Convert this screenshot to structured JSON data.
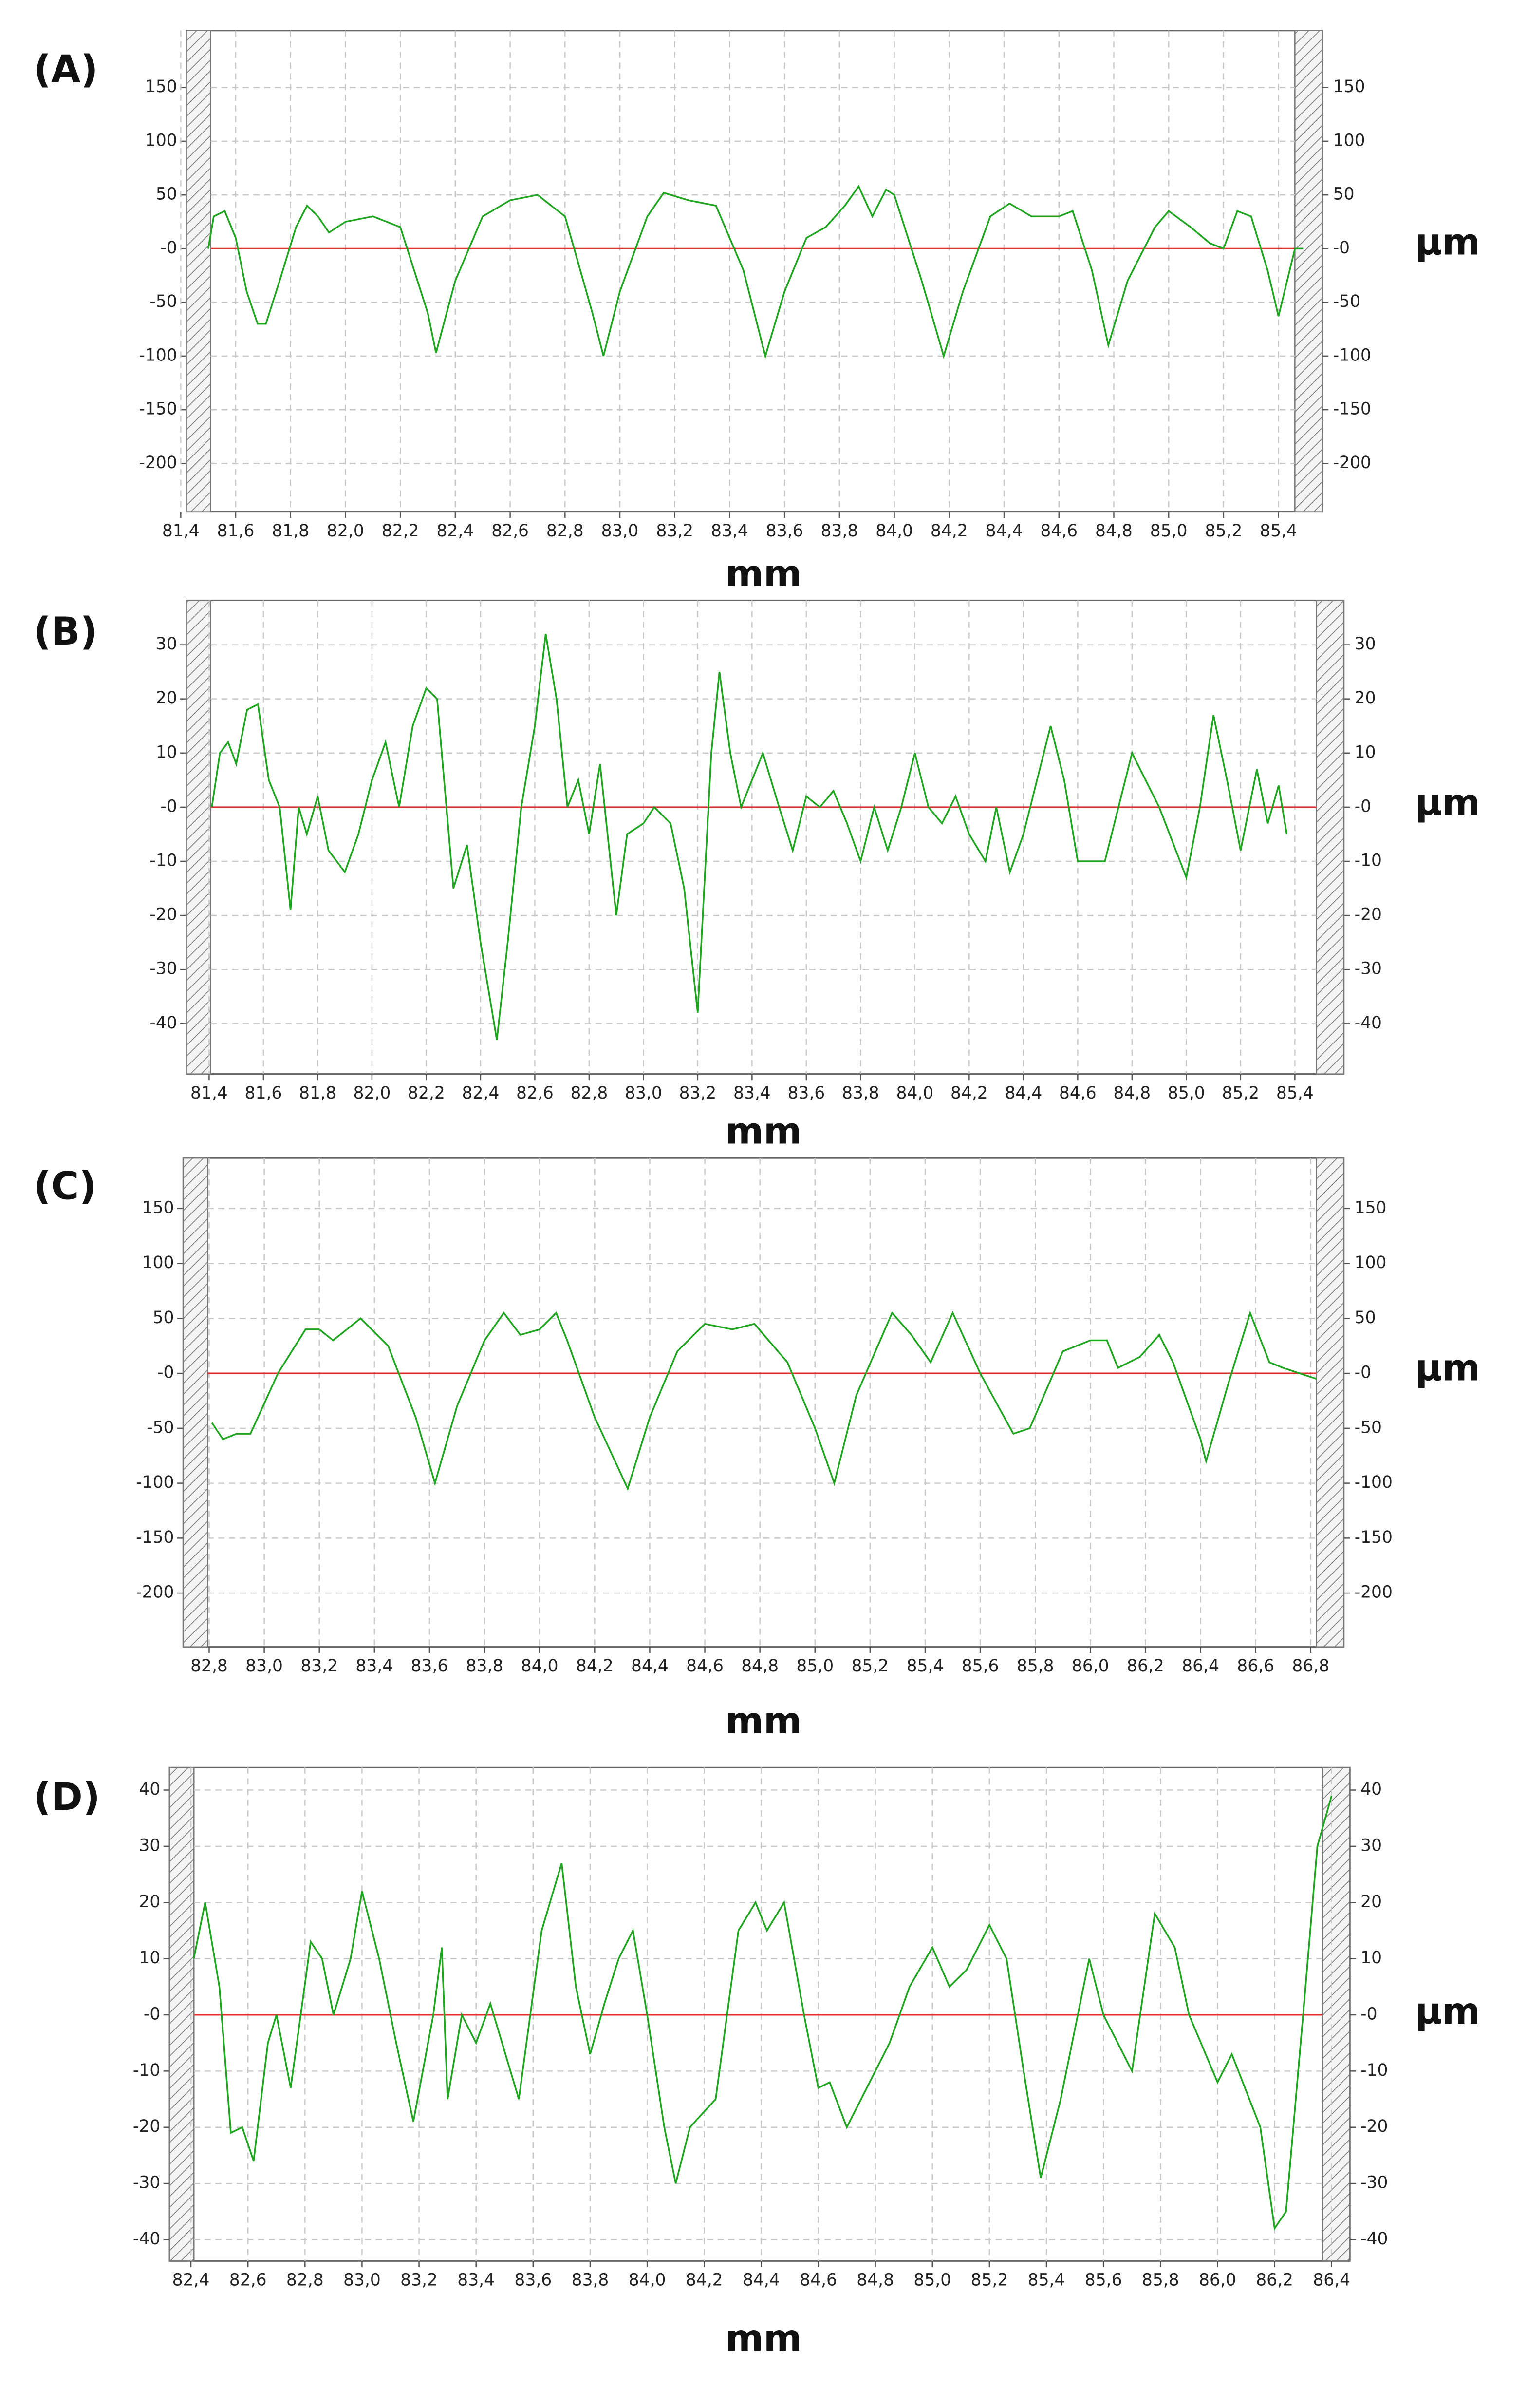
{
  "chart_data": [
    {
      "type": "line",
      "panel_label": "(A)",
      "x_label": "mm",
      "y_label": "µm",
      "color": "#1fa51f",
      "zero_color": "#e03030",
      "grid": true,
      "xlim": [
        81.42,
        85.56
      ],
      "ylim": [
        -245,
        203
      ],
      "xticks": [
        {
          "value": 81.4,
          "label": "81,4"
        },
        {
          "value": 81.6,
          "label": "81,6"
        },
        {
          "value": 81.8,
          "label": "81,8"
        },
        {
          "value": 82.0,
          "label": "82,0"
        },
        {
          "value": 82.2,
          "label": "82,2"
        },
        {
          "value": 82.4,
          "label": "82,4"
        },
        {
          "value": 82.6,
          "label": "82,6"
        },
        {
          "value": 82.8,
          "label": "82,8"
        },
        {
          "value": 83.0,
          "label": "83,0"
        },
        {
          "value": 83.2,
          "label": "83,2"
        },
        {
          "value": 83.4,
          "label": "83,4"
        },
        {
          "value": 83.6,
          "label": "83,6"
        },
        {
          "value": 83.8,
          "label": "83,8"
        },
        {
          "value": 84.0,
          "label": "84,0"
        },
        {
          "value": 84.2,
          "label": "84,2"
        },
        {
          "value": 84.4,
          "label": "84,4"
        },
        {
          "value": 84.6,
          "label": "84,6"
        },
        {
          "value": 84.8,
          "label": "84,8"
        },
        {
          "value": 85.0,
          "label": "85,0"
        },
        {
          "value": 85.2,
          "label": "85,2"
        },
        {
          "value": 85.4,
          "label": "85,4"
        }
      ],
      "yticks": [
        150,
        100,
        50,
        {
          "value": 0,
          "label": "-0"
        },
        -50,
        -100,
        -150,
        -200
      ],
      "x": [
        81.5,
        81.52,
        81.56,
        81.6,
        81.64,
        81.68,
        81.71,
        81.76,
        81.82,
        81.86,
        81.9,
        81.94,
        82.0,
        82.1,
        82.2,
        82.3,
        82.33,
        82.4,
        82.5,
        82.6,
        82.7,
        82.8,
        82.9,
        82.94,
        83.0,
        83.1,
        83.16,
        83.25,
        83.35,
        83.45,
        83.53,
        83.6,
        83.68,
        83.75,
        83.82,
        83.87,
        83.92,
        83.97,
        84.0,
        84.1,
        84.18,
        84.25,
        84.35,
        84.42,
        84.5,
        84.6,
        84.65,
        84.72,
        84.78,
        84.85,
        84.95,
        85.0,
        85.08,
        85.15,
        85.2,
        85.25,
        85.3,
        85.36,
        85.4,
        85.46,
        85.49
      ],
      "values": [
        0,
        30,
        35,
        10,
        -40,
        -70,
        -70,
        -30,
        20,
        40,
        30,
        15,
        25,
        30,
        20,
        -60,
        -97,
        -30,
        30,
        45,
        50,
        30,
        -60,
        -100,
        -40,
        30,
        52,
        45,
        40,
        -20,
        -100,
        -40,
        10,
        20,
        40,
        58,
        30,
        55,
        50,
        -30,
        -100,
        -40,
        30,
        42,
        30,
        30,
        35,
        -20,
        -90,
        -30,
        20,
        35,
        20,
        5,
        0,
        35,
        30,
        -20,
        -63,
        0,
        0
      ]
    },
    {
      "type": "line",
      "panel_label": "(B)",
      "x_label": "mm",
      "y_label": "µm",
      "color": "#1fa51f",
      "zero_color": "#e03030",
      "grid": true,
      "xlim": [
        81.316,
        85.58
      ],
      "ylim": [
        -49.3,
        38.2
      ],
      "xticks": [
        {
          "value": 81.4,
          "label": "81,4"
        },
        {
          "value": 81.6,
          "label": "81,6"
        },
        {
          "value": 81.8,
          "label": "81,8"
        },
        {
          "value": 82.0,
          "label": "82,0"
        },
        {
          "value": 82.2,
          "label": "82,2"
        },
        {
          "value": 82.4,
          "label": "82,4"
        },
        {
          "value": 82.6,
          "label": "82,6"
        },
        {
          "value": 82.8,
          "label": "82,8"
        },
        {
          "value": 83.0,
          "label": "83,0"
        },
        {
          "value": 83.2,
          "label": "83,2"
        },
        {
          "value": 83.4,
          "label": "83,4"
        },
        {
          "value": 83.6,
          "label": "83,6"
        },
        {
          "value": 83.8,
          "label": "83,8"
        },
        {
          "value": 84.0,
          "label": "84,0"
        },
        {
          "value": 84.2,
          "label": "84,2"
        },
        {
          "value": 84.4,
          "label": "84,4"
        },
        {
          "value": 84.6,
          "label": "84,6"
        },
        {
          "value": 84.8,
          "label": "84,8"
        },
        {
          "value": 85.0,
          "label": "85,0"
        },
        {
          "value": 85.2,
          "label": "85,2"
        },
        {
          "value": 85.4,
          "label": "85,4"
        }
      ],
      "yticks": [
        30,
        20,
        10,
        {
          "value": 0,
          "label": "-0"
        },
        -10,
        -20,
        -30,
        -40
      ],
      "x": [
        81.41,
        81.44,
        81.47,
        81.5,
        81.54,
        81.58,
        81.62,
        81.66,
        81.7,
        81.73,
        81.76,
        81.8,
        81.84,
        81.9,
        81.95,
        82.0,
        82.05,
        82.1,
        82.15,
        82.2,
        82.24,
        82.3,
        82.35,
        82.4,
        82.46,
        82.5,
        82.55,
        82.6,
        82.64,
        82.68,
        82.72,
        82.76,
        82.8,
        82.84,
        82.9,
        82.94,
        83.0,
        83.04,
        83.1,
        83.15,
        83.2,
        83.25,
        83.28,
        83.32,
        83.36,
        83.4,
        83.44,
        83.5,
        83.55,
        83.6,
        83.65,
        83.7,
        83.75,
        83.8,
        83.85,
        83.9,
        83.95,
        84.0,
        84.05,
        84.1,
        84.15,
        84.2,
        84.26,
        84.3,
        84.35,
        84.4,
        84.45,
        84.5,
        84.55,
        84.6,
        84.7,
        84.75,
        84.8,
        84.85,
        84.9,
        85.0,
        85.05,
        85.1,
        85.15,
        85.2,
        85.26,
        85.3,
        85.34,
        85.37
      ],
      "values": [
        0,
        10,
        12,
        8,
        18,
        19,
        5,
        0,
        -19,
        0,
        -5,
        2,
        -8,
        -12,
        -5,
        5,
        12,
        0,
        15,
        22,
        20,
        -15,
        -7,
        -25,
        -43,
        -25,
        0,
        15,
        32,
        20,
        0,
        5,
        -5,
        8,
        -20,
        -5,
        -3,
        0,
        -3,
        -15,
        -38,
        10,
        25,
        10,
        0,
        5,
        10,
        0,
        -8,
        2,
        0,
        3,
        -3,
        -10,
        0,
        -8,
        0,
        10,
        0,
        -3,
        2,
        -5,
        -10,
        0,
        -12,
        -5,
        5,
        15,
        5,
        -10,
        -10,
        0,
        10,
        5,
        0,
        -13,
        0,
        17,
        5,
        -8,
        7,
        -3,
        4,
        -5
      ]
    },
    {
      "type": "line",
      "panel_label": "(C)",
      "x_label": "mm",
      "y_label": "µm",
      "color": "#1fa51f",
      "zero_color": "#e03030",
      "grid": true,
      "xlim": [
        82.706,
        86.92
      ],
      "ylim": [
        -249,
        196
      ],
      "xticks": [
        {
          "value": 82.8,
          "label": "82,8"
        },
        {
          "value": 83.0,
          "label": "83,0"
        },
        {
          "value": 83.2,
          "label": "83,2"
        },
        {
          "value": 83.4,
          "label": "83,4"
        },
        {
          "value": 83.6,
          "label": "83,6"
        },
        {
          "value": 83.8,
          "label": "83,8"
        },
        {
          "value": 84.0,
          "label": "84,0"
        },
        {
          "value": 84.2,
          "label": "84,2"
        },
        {
          "value": 84.4,
          "label": "84,4"
        },
        {
          "value": 84.6,
          "label": "84,6"
        },
        {
          "value": 84.8,
          "label": "84,8"
        },
        {
          "value": 85.0,
          "label": "85,0"
        },
        {
          "value": 85.2,
          "label": "85,2"
        },
        {
          "value": 85.4,
          "label": "85,4"
        },
        {
          "value": 85.6,
          "label": "85,6"
        },
        {
          "value": 85.8,
          "label": "85,8"
        },
        {
          "value": 86.0,
          "label": "86,0"
        },
        {
          "value": 86.2,
          "label": "86,2"
        },
        {
          "value": 86.4,
          "label": "86,4"
        },
        {
          "value": 86.6,
          "label": "86,6"
        },
        {
          "value": 86.8,
          "label": "86,8"
        }
      ],
      "yticks": [
        150,
        100,
        50,
        {
          "value": 0,
          "label": "-0"
        },
        -50,
        -100,
        -150,
        -200
      ],
      "x": [
        82.81,
        82.85,
        82.9,
        82.95,
        83.05,
        83.15,
        83.2,
        83.25,
        83.35,
        83.45,
        83.55,
        83.62,
        83.7,
        83.8,
        83.87,
        83.93,
        84.0,
        84.06,
        84.1,
        84.2,
        84.32,
        84.4,
        84.5,
        84.6,
        84.7,
        84.78,
        84.9,
        85.0,
        85.07,
        85.15,
        85.28,
        85.35,
        85.42,
        85.5,
        85.6,
        85.72,
        85.78,
        85.9,
        86.0,
        86.06,
        86.1,
        86.18,
        86.25,
        86.3,
        86.4,
        86.42,
        86.5,
        86.58,
        86.65,
        86.7,
        86.82
      ],
      "values": [
        -45,
        -60,
        -55,
        -55,
        0,
        40,
        40,
        30,
        50,
        25,
        -40,
        -100,
        -30,
        30,
        55,
        35,
        40,
        55,
        30,
        -40,
        -105,
        -40,
        20,
        45,
        40,
        45,
        10,
        -50,
        -100,
        -20,
        55,
        35,
        10,
        55,
        0,
        -55,
        -50,
        20,
        30,
        30,
        5,
        15,
        35,
        10,
        -60,
        -80,
        -10,
        55,
        10,
        5,
        -5
      ]
    },
    {
      "type": "line",
      "panel_label": "(D)",
      "x_label": "mm",
      "y_label": "µm",
      "color": "#1fa51f",
      "zero_color": "#e03030",
      "grid": true,
      "xlim": [
        82.325,
        86.464
      ],
      "ylim": [
        -43.8,
        44
      ],
      "xticks": [
        {
          "value": 82.4,
          "label": "82,4"
        },
        {
          "value": 82.6,
          "label": "82,6"
        },
        {
          "value": 82.8,
          "label": "82,8"
        },
        {
          "value": 83.0,
          "label": "83,0"
        },
        {
          "value": 83.2,
          "label": "83,2"
        },
        {
          "value": 83.4,
          "label": "83,4"
        },
        {
          "value": 83.6,
          "label": "83,6"
        },
        {
          "value": 83.8,
          "label": "83,8"
        },
        {
          "value": 84.0,
          "label": "84,0"
        },
        {
          "value": 84.2,
          "label": "84,2"
        },
        {
          "value": 84.4,
          "label": "84,4"
        },
        {
          "value": 84.6,
          "label": "84,6"
        },
        {
          "value": 84.8,
          "label": "84,8"
        },
        {
          "value": 85.0,
          "label": "85,0"
        },
        {
          "value": 85.2,
          "label": "85,2"
        },
        {
          "value": 85.4,
          "label": "85,4"
        },
        {
          "value": 85.6,
          "label": "85,6"
        },
        {
          "value": 85.8,
          "label": "85,8"
        },
        {
          "value": 86.0,
          "label": "86,0"
        },
        {
          "value": 86.2,
          "label": "86,2"
        },
        {
          "value": 86.4,
          "label": "86,4"
        }
      ],
      "yticks": [
        40,
        30,
        20,
        10,
        {
          "value": 0,
          "label": "-0"
        },
        -10,
        -20,
        -30,
        -40
      ],
      "x": [
        82.41,
        82.45,
        82.5,
        82.54,
        82.58,
        82.62,
        82.67,
        82.7,
        82.75,
        82.82,
        82.86,
        82.9,
        82.96,
        83.0,
        83.06,
        83.12,
        83.18,
        83.25,
        83.28,
        83.3,
        83.35,
        83.4,
        83.45,
        83.55,
        83.63,
        83.7,
        83.75,
        83.8,
        83.85,
        83.9,
        83.95,
        84.0,
        84.06,
        84.1,
        84.15,
        84.24,
        84.32,
        84.38,
        84.42,
        84.48,
        84.55,
        84.6,
        84.64,
        84.7,
        84.75,
        84.85,
        84.92,
        85.0,
        85.06,
        85.12,
        85.2,
        85.26,
        85.32,
        85.38,
        85.45,
        85.55,
        85.6,
        85.7,
        85.78,
        85.85,
        85.9,
        86.0,
        86.05,
        86.15,
        86.2,
        86.24,
        86.3,
        86.35,
        86.4
      ],
      "values": [
        10,
        20,
        5,
        -21,
        -20,
        -26,
        -5,
        0,
        -13,
        13,
        10,
        0,
        10,
        22,
        10,
        -5,
        -19,
        0,
        12,
        -15,
        0,
        -5,
        2,
        -15,
        15,
        27,
        5,
        -7,
        2,
        10,
        15,
        0,
        -20,
        -30,
        -20,
        -15,
        15,
        20,
        15,
        20,
        0,
        -13,
        -12,
        -20,
        -15,
        -5,
        5,
        12,
        5,
        8,
        16,
        10,
        -10,
        -29,
        -15,
        10,
        0,
        -10,
        18,
        12,
        0,
        -12,
        -7,
        -20,
        -38,
        -35,
        0,
        30,
        39
      ]
    }
  ]
}
